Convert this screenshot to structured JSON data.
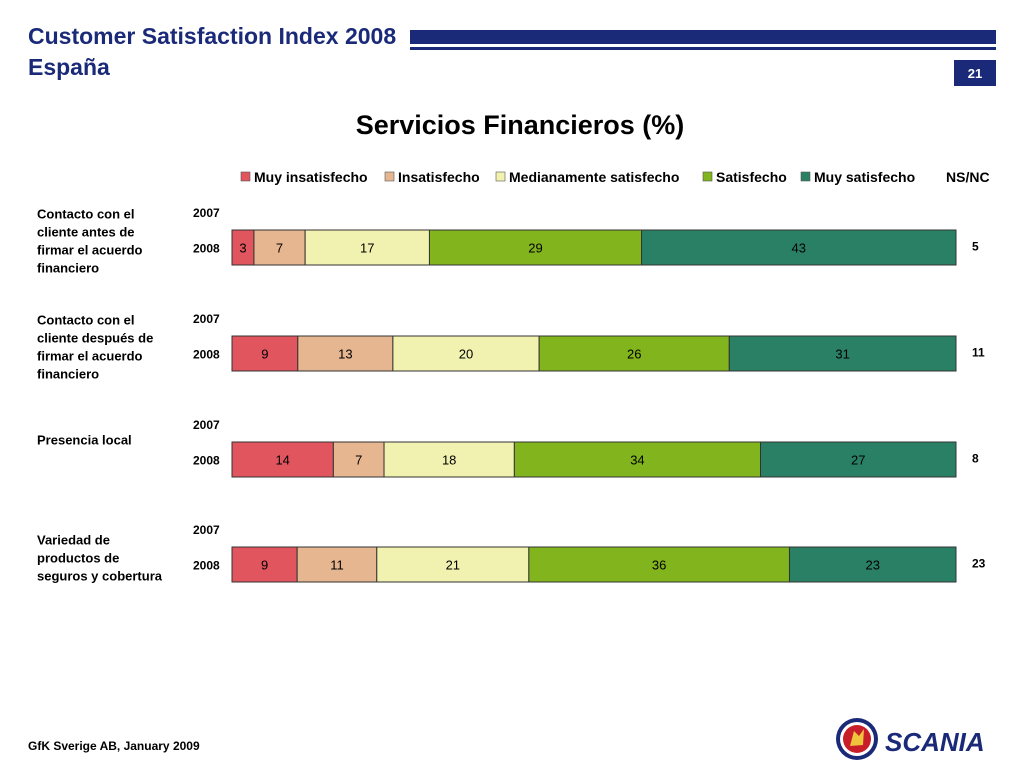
{
  "header": {
    "title": "Customer Satisfaction Index 2008",
    "subtitle": "España",
    "page_number": "21",
    "accent_color": "#1a2a78"
  },
  "footer": {
    "source": "GfK Sverige AB, January 2009"
  },
  "logo": {
    "text": "SCANIA",
    "icon": "scania-griffin-icon"
  },
  "chart_data": {
    "type": "bar",
    "orientation": "horizontal",
    "stacked": true,
    "title": "Servicios Financieros (%)",
    "legend": {
      "placement": "top",
      "entries": [
        "Muy insatisfecho",
        "Insatisfecho",
        "Medianamente satisfecho",
        "Satisfecho",
        "Muy satisfecho"
      ],
      "extra_label": "NS/NC"
    },
    "series_colors": [
      "#e0555e",
      "#e6b690",
      "#f2f2b0",
      "#82b41e",
      "#2a8064"
    ],
    "years": [
      "2007",
      "2008"
    ],
    "groups": [
      {
        "label": "Contacto con el cliente antes de firmar el acuerdo financiero",
        "values_2008": [
          3,
          7,
          17,
          29,
          43
        ],
        "nsnc_2008": "5"
      },
      {
        "label": "Contacto con el cliente después de firmar el acuerdo financiero",
        "values_2008": [
          9,
          13,
          20,
          26,
          31
        ],
        "nsnc_2008": "11"
      },
      {
        "label": "Presencia local",
        "values_2008": [
          14,
          7,
          18,
          34,
          27
        ],
        "nsnc_2008": "8"
      },
      {
        "label": "Variedad de productos de seguros y cobertura",
        "values_2008": [
          9,
          11,
          21,
          36,
          23
        ],
        "nsnc_2008": "23"
      }
    ]
  }
}
